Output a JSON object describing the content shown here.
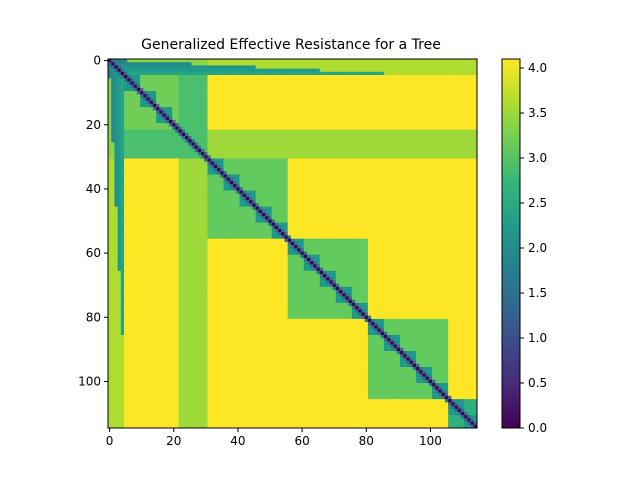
{
  "chart_data": {
    "type": "heatmap",
    "title": "Generalized Effective Resistance for a Tree",
    "xlabel": "",
    "ylabel": "",
    "size": 115,
    "x_ticks": [
      0,
      20,
      40,
      60,
      80,
      100
    ],
    "y_ticks": [
      0,
      20,
      40,
      60,
      80,
      100
    ],
    "xlim": [
      0,
      114
    ],
    "ylim": [
      114,
      0
    ],
    "colorbar": {
      "min": 0.0,
      "max": 4.1,
      "ticks": [
        "0.0",
        "0.5",
        "1.0",
        "1.5",
        "2.0",
        "2.5",
        "3.0",
        "3.5",
        "4.0"
      ],
      "colormap": "viridis"
    },
    "colormap_stops": [
      "#440154",
      "#482878",
      "#3e4989",
      "#31688e",
      "#26828e",
      "#1f9e89",
      "#35b779",
      "#6ece58",
      "#b5de2b",
      "#fde725"
    ],
    "blocks": [
      {
        "range": [
          0,
          5
        ],
        "kind": "row-band"
      },
      {
        "range": [
          5,
          31
        ],
        "within": 3.2
      },
      {
        "range": [
          31,
          56
        ],
        "within": 3.1
      },
      {
        "range": [
          56,
          81
        ],
        "within": 3.1
      },
      {
        "range": [
          81,
          106
        ],
        "within": 3.1
      },
      {
        "range": [
          106,
          115
        ],
        "within": 2.6
      }
    ],
    "diagonal_value": 0.0,
    "near_diagonal_value": 1.5,
    "off_block_value": 4.1,
    "band_22_31_value": 3.5
  }
}
